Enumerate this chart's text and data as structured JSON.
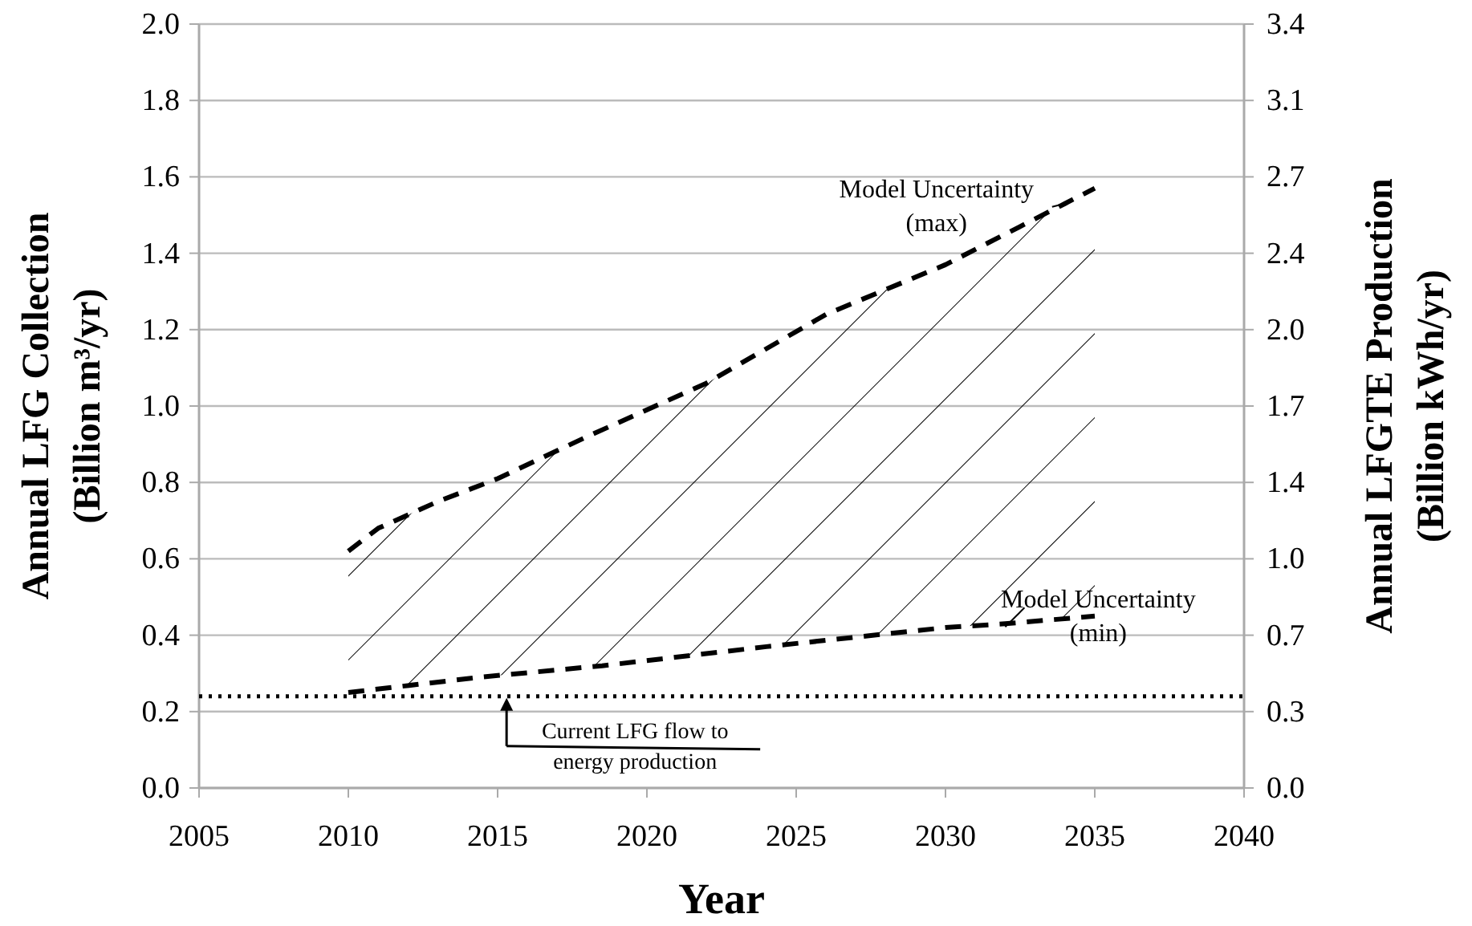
{
  "chart_data": {
    "type": "line",
    "xlabel": "Year",
    "ylabel": "Annual LFG Collection\n(Billion m³/yr)",
    "y2label": "Annual LFGTE Production\n(Billion kWh/yr)",
    "xlim": [
      2005,
      2040
    ],
    "xticks": [
      2005,
      2010,
      2015,
      2020,
      2025,
      2030,
      2035,
      2040
    ],
    "ylim": [
      0,
      2
    ],
    "yticks": [
      {
        "value": 0,
        "label": "0.0"
      },
      {
        "value": 0.2,
        "label": "0.2"
      },
      {
        "value": 0.4,
        "label": "0.4"
      },
      {
        "value": 0.6,
        "label": "0.6"
      },
      {
        "value": 0.8,
        "label": "0.8"
      },
      {
        "value": 1,
        "label": "1.0"
      },
      {
        "value": 1.2,
        "label": "1.2"
      },
      {
        "value": 1.4,
        "label": "1.4"
      },
      {
        "value": 1.6,
        "label": "1.6"
      },
      {
        "value": 1.8,
        "label": "1.8"
      },
      {
        "value": 2,
        "label": "2.0"
      }
    ],
    "y2lim": [
      0,
      3.4
    ],
    "y2ticks": [
      {
        "value": 0,
        "label": "0.0"
      },
      {
        "value": 0.34,
        "label": "0.3"
      },
      {
        "value": 0.68,
        "label": "0.7"
      },
      {
        "value": 1.02,
        "label": "1.0"
      },
      {
        "value": 1.36,
        "label": "1.4"
      },
      {
        "value": 1.7,
        "label": "1.7"
      },
      {
        "value": 2.04,
        "label": "2.0"
      },
      {
        "value": 2.38,
        "label": "2.4"
      },
      {
        "value": 2.72,
        "label": "2.7"
      },
      {
        "value": 3.06,
        "label": "3.1"
      },
      {
        "value": 3.4,
        "label": "3.4"
      }
    ],
    "grid": "y",
    "line_style": "dashed",
    "series": [
      {
        "color": "#000000",
        "x": [
          2010,
          2011,
          2013,
          2015,
          2018,
          2022,
          2026,
          2030,
          2034,
          2035
        ],
        "values": [
          0.62,
          0.68,
          0.75,
          0.81,
          0.92,
          1.06,
          1.24,
          1.37,
          1.53,
          1.57
        ]
      },
      {
        "color": "#000000",
        "x": [
          2010,
          2014.4,
          2018.5,
          2024,
          2030,
          2032,
          2035
        ],
        "values": [
          0.25,
          0.29,
          0.32,
          0.37,
          0.42,
          0.43,
          0.45
        ]
      }
    ],
    "ref_lines": [
      {
        "axis": "y",
        "value": 0.24,
        "line_style": "dotted",
        "color": "#000000"
      }
    ],
    "annotations": [
      {
        "text": "Model Uncertainty\n(max)",
        "x": 2034,
        "y": 1.53
      },
      {
        "text": "Model Uncertainty\n(min)",
        "x": 2032,
        "y": 0.43
      },
      {
        "text": "Current LFG flow to\nenergy production",
        "x": 2015.3,
        "y": 0.24
      }
    ]
  }
}
